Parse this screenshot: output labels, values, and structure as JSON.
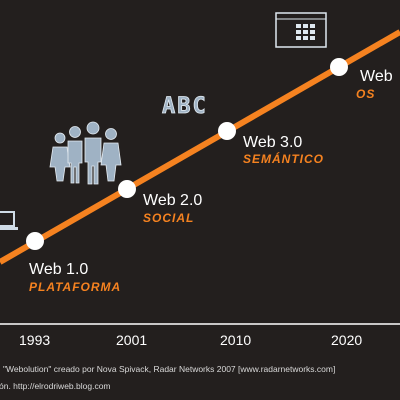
{
  "milestones": [
    {
      "label": "Web 1.0",
      "sublabel": "Plataforma"
    },
    {
      "label": "Web 2.0",
      "sublabel": "Social"
    },
    {
      "label": "Web 3.0",
      "sublabel": "Semántico"
    },
    {
      "label": "Web",
      "sublabel": "OS"
    }
  ],
  "years": [
    "1993",
    "2001",
    "2010",
    "2020"
  ],
  "abc_text": "ABC",
  "credits": {
    "line1": "\"Webolution\" creado por Nova Spivack, Radar Networks 2007 [www.radarnetworks.com]",
    "line2": "ón. http://elrodriweb.blog.com"
  },
  "colors": {
    "background": "#231f1e",
    "trend_line": "#f58220",
    "accent": "#f58220"
  },
  "icons": [
    "laptop-icon",
    "people-group-icon",
    "abc-icon",
    "window-grid-icon"
  ]
}
